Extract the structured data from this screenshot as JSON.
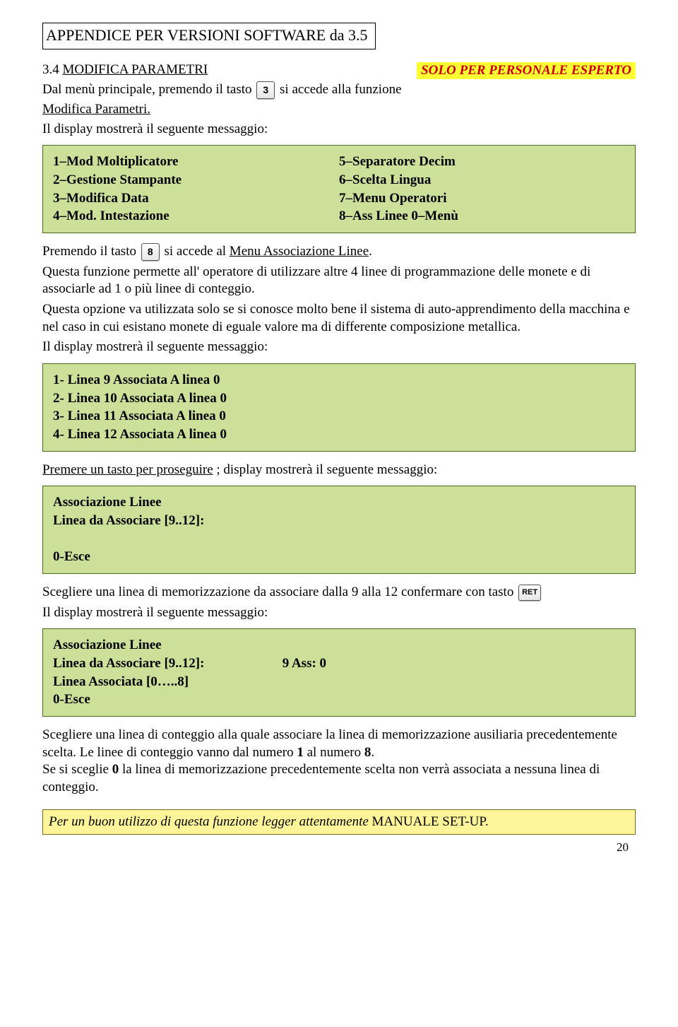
{
  "title": "APPENDICE PER VERSIONI SOFTWARE da 3.5",
  "section_number": "3.4",
  "section_label": "MODIFICA PARAMETRI",
  "expert_badge": "SOLO PER PERSONALE ESPERTO",
  "line1_a": "Dal menù principale, premendo il tasto",
  "key3": "3",
  "line1_b": "si accede alla funzione",
  "line2": "Modifica Parametri.",
  "line3": "Il display mostrerà il seguente messaggio:",
  "menu_box": {
    "left": [
      "1–Mod Moltiplicatore",
      "2–Gestione Stampante",
      "3–Modifica Data",
      "4–Mod. Intestazione"
    ],
    "right": [
      "5–Separatore Decim",
      "6–Scelta Lingua",
      "7–Menu Operatori",
      "8–Ass Linee  0–Menù"
    ]
  },
  "line4_a": "Premendo il tasto",
  "key8": "8",
  "line4_b": "si accede al",
  "line4_c": "Menu Associazione Linee",
  "para1": "Questa funzione permette all' operatore di utilizzare altre 4 linee di programmazione delle monete e di associarle ad 1 o più linee di conteggio.",
  "para2": "Questa opzione va utilizzata solo se si conosce molto bene il sistema di auto-apprendimento della macchina e nel caso in cui esistano monete di eguale valore ma di differente composizione metallica.",
  "para3": "Il display mostrerà il seguente messaggio:",
  "linee_box": [
    "1-  Linea  9  Associata A linea 0",
    "2-  Linea 10 Associata A linea 0",
    "3-  Linea 11 Associata A linea 0",
    "4-  Linea 12 Associata A linea 0"
  ],
  "premere_a": "Premere un tasto per proseguire",
  "premere_b": " ; display mostrerà il seguente messaggio:",
  "assoc_box1": {
    "l1": "Associazione Linee",
    "l2": "Linea da Associare [9..12]:",
    "l3": "",
    "l4": "0-Esce"
  },
  "scegliere1_a": "Scegliere una linea di memorizzazione da associare dalla 9 alla 12 confermare con tasto",
  "key_ret": "RET",
  "scegliere1_b": "Il display mostrerà il seguente messaggio:",
  "assoc_box2": {
    "l1": "Associazione Linee",
    "l2_left": "Linea da Associare [9..12]:",
    "l2_right": "9    Ass: 0",
    "l3": "Linea Associata [0…..8]",
    "l4": "0-Esce"
  },
  "para4": "Scegliere una linea di conteggio alla quale associare la linea di memorizzazione ausiliaria precedentemente scelta. Le linee di conteggio vanno dal numero ",
  "bold1": "1",
  "para4b": " al numero ",
  "bold8": "8",
  "para4c": "Se si sceglie ",
  "bold0": "0",
  "para4d": " la linea di memorizzazione precedentemente scelta non verrà associata a nessuna linea di conteggio.",
  "yellow_a": "Per un buon utilizzo di questa funzione legger attentamente ",
  "yellow_b": "MANUALE SET-UP.",
  "pagenum": "20"
}
